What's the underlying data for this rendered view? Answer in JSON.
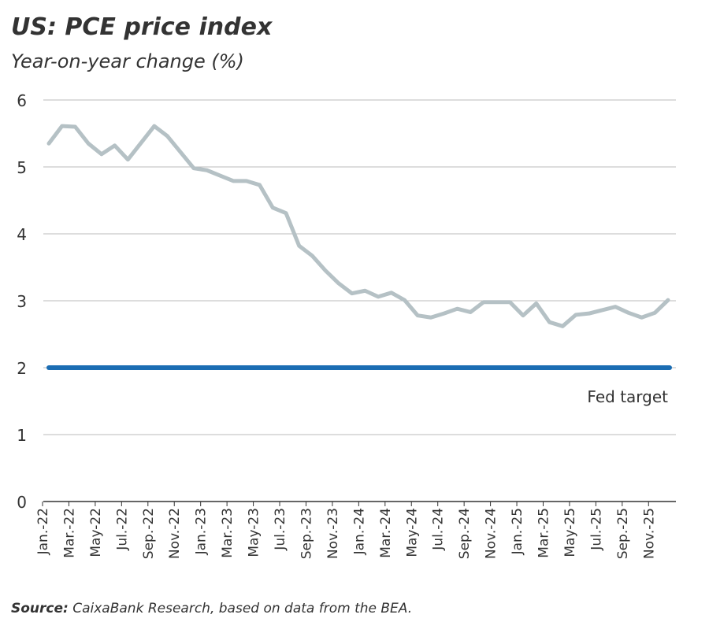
{
  "chart_data": {
    "type": "line",
    "title": "US: PCE price index",
    "subtitle": "Year-on-year change (%)",
    "categories": [
      "Jan.-22",
      null,
      "Mar.-22",
      null,
      "May-22",
      null,
      "Jul.-22",
      null,
      "Sep.-22",
      null,
      "Nov.-22",
      null,
      "Jan.-23",
      null,
      "Mar.-23",
      null,
      "May-23",
      null,
      "Jul.-23",
      null,
      "Sep.-23",
      null,
      "Nov.-23",
      null,
      "Jan.-24",
      null,
      "Mar.-24",
      null,
      "May-24",
      null,
      "Jul.-24",
      null,
      "Sep.-24",
      null,
      "Nov.-24",
      null,
      "Jan.-25",
      null,
      "Mar.-25",
      null,
      "May-25",
      null,
      "Jul.-25",
      null,
      "Sep.-25",
      null,
      "Nov.-25",
      null
    ],
    "series": [
      {
        "color": "#b5c1c5",
        "values": [
          5.35,
          5.61,
          5.6,
          5.35,
          5.19,
          5.32,
          5.11,
          5.36,
          5.61,
          5.46,
          5.22,
          4.98,
          4.95,
          4.87,
          4.79,
          4.79,
          4.73,
          4.39,
          4.31,
          3.82,
          3.67,
          3.45,
          3.26,
          3.11,
          3.15,
          3.06,
          3.12,
          3.01,
          2.78,
          2.75,
          2.81,
          2.88,
          2.83,
          2.98,
          2.98,
          2.98,
          2.78,
          2.96,
          2.68,
          2.62,
          2.79,
          2.81,
          2.86,
          2.91,
          2.82,
          2.75,
          2.82,
          3.01
        ]
      }
    ],
    "reference_line": {
      "value": 2,
      "label": "Fed target",
      "color": "#1b6db3"
    },
    "ylim": [
      0,
      6
    ],
    "yticks": [
      0,
      1,
      2,
      3,
      4,
      5,
      6
    ],
    "grid": true,
    "source_label": "Source:",
    "source_text": "CaixaBank Research, based on data from the BEA."
  }
}
